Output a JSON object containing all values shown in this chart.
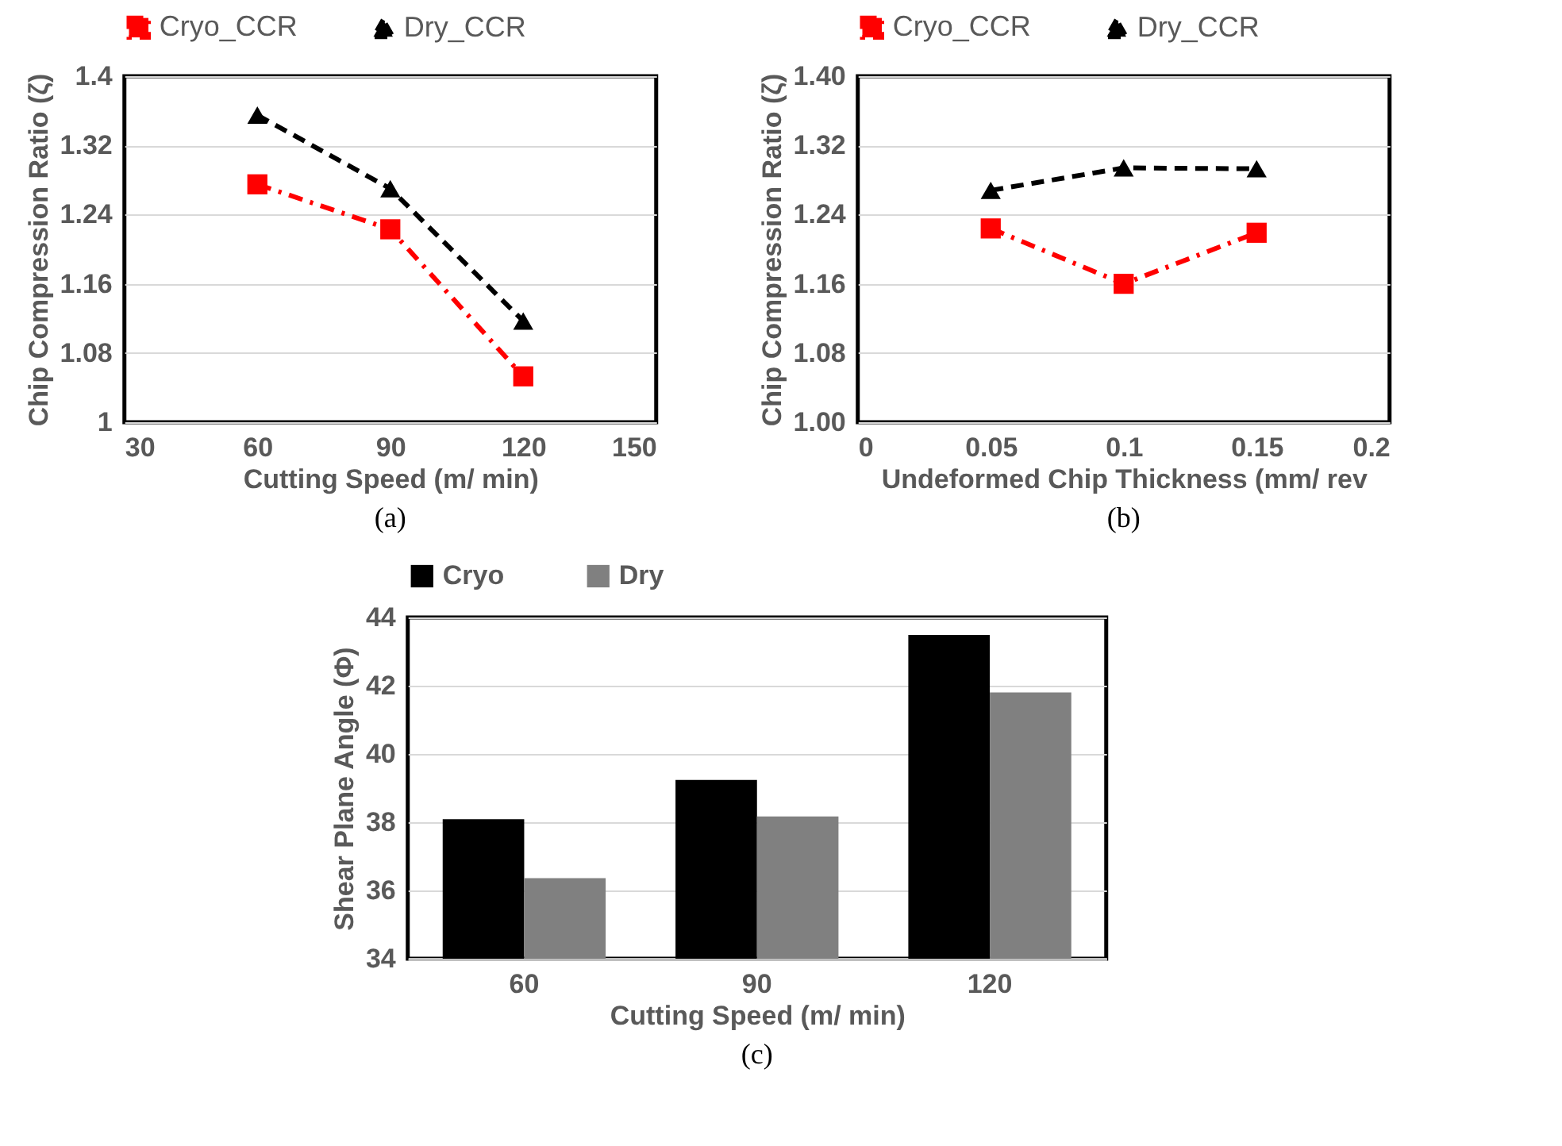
{
  "chart_data": [
    {
      "type": "line",
      "xlabel": "Cutting Speed (m/ min)",
      "ylabel": "Chip Compression Ratio (ζ)",
      "annotations": [
        "(a)"
      ],
      "x": [
        60,
        90,
        120
      ],
      "series": [
        {
          "name": "Cryo_CCR",
          "color": "#ff0000",
          "values": [
            1.275,
            1.223,
            1.053
          ],
          "marker": "square",
          "line_style": "dashdot"
        },
        {
          "name": "Dry_CCR",
          "color": "#000000",
          "values": [
            1.355,
            1.27,
            1.117
          ],
          "marker": "triangle",
          "line_style": "dashed"
        }
      ],
      "xlim": [
        30,
        150
      ],
      "xticks": [
        30,
        60,
        90,
        120,
        150
      ],
      "ylim": [
        1,
        1.4
      ],
      "yticks": [
        1,
        1.08,
        1.16,
        1.24,
        1.32,
        1.4
      ],
      "grid": "y",
      "legend": "top"
    },
    {
      "type": "line",
      "xlabel": "Undeformed Chip Thickness (mm/ rev",
      "ylabel": "Chip Compression Ratio (ζ)",
      "annotations": [
        "(b)"
      ],
      "x": [
        0.05,
        0.1,
        0.15
      ],
      "series": [
        {
          "name": "Cryo_CCR",
          "color": "#ff0000",
          "values": [
            1.224,
            1.16,
            1.219
          ],
          "marker": "square",
          "line_style": "dashdot"
        },
        {
          "name": "Dry_CCR",
          "color": "#000000",
          "values": [
            1.268,
            1.294,
            1.293
          ],
          "marker": "triangle",
          "line_style": "dashed"
        }
      ],
      "xlim": [
        0,
        0.2
      ],
      "xticks": [
        0,
        0.05,
        0.1,
        0.15,
        0.2
      ],
      "ylim": [
        1,
        1.4
      ],
      "yticks": [
        {
          "value": 1,
          "label": "1.00"
        },
        {
          "value": 1.08,
          "label": "1.08"
        },
        {
          "value": 1.16,
          "label": "1.16"
        },
        {
          "value": 1.24,
          "label": "1.24"
        },
        {
          "value": 1.32,
          "label": "1.32"
        },
        {
          "value": 1.4,
          "label": "1.40"
        }
      ],
      "grid": "y",
      "legend": "top"
    },
    {
      "type": "bar",
      "xlabel": "Cutting Speed (m/ min)",
      "ylabel": "Shear Plane Angle (Φ)",
      "annotations": [
        "(c)"
      ],
      "categories": [
        "60",
        "90",
        "120"
      ],
      "series": [
        {
          "name": "Cryo",
          "color": "#000000",
          "values": [
            38.09,
            39.24,
            43.49
          ]
        },
        {
          "name": "Dry",
          "color": "#808080",
          "values": [
            36.36,
            38.17,
            41.8
          ]
        }
      ],
      "ylim": [
        34,
        44
      ],
      "yticks": [
        34,
        36,
        38,
        40,
        42,
        44
      ],
      "grid": "y",
      "legend": "top"
    }
  ]
}
